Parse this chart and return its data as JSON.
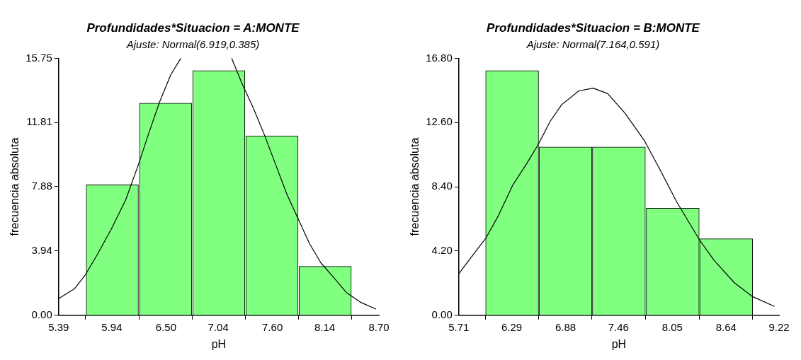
{
  "chart_data": [
    {
      "type": "histogram",
      "title": "Profundidades*Situacion = A:MONTE",
      "subtitle": "Ajuste: Normal(6.919,0.385)",
      "xlabel": "pH",
      "ylabel": "frecuencia absoluta",
      "bins": [
        5.67,
        6.22,
        6.77,
        7.32,
        7.87,
        8.42
      ],
      "values": [
        8,
        13,
        15,
        11,
        3
      ],
      "color": "#80ff80",
      "series": [
        {
          "type": "line",
          "color": "#000000",
          "x": [
            5.39,
            5.557,
            5.665,
            5.79,
            5.937,
            6.083,
            6.215,
            6.317,
            6.434,
            6.55,
            6.653,
            6.9,
            7.179,
            7.282,
            7.399,
            7.516,
            7.633,
            7.75,
            7.867,
            7.983,
            8.1,
            8.247,
            8.364,
            8.51,
            8.67
          ],
          "values": [
            1.02,
            1.64,
            2.47,
            3.72,
            5.31,
            7.07,
            9.24,
            11.07,
            13.08,
            14.75,
            15.75,
            null,
            15.75,
            14.25,
            12.74,
            11.07,
            9.24,
            7.4,
            5.9,
            4.39,
            3.22,
            2.22,
            1.39,
            0.8,
            0.38
          ]
        }
      ],
      "xlim": [
        5.39,
        8.7
      ],
      "xticks": [
        5.39,
        5.94,
        {
          "value": 6.5,
          "label": "6.50"
        },
        7.04,
        {
          "value": 7.6,
          "label": "7.60"
        },
        8.14,
        {
          "value": 8.7,
          "label": "8.70"
        }
      ],
      "ylim": [
        0,
        15.75
      ],
      "yticks": [
        {
          "value": 0,
          "label": "0.00"
        },
        3.94,
        7.88,
        11.81,
        15.75
      ],
      "grid": false,
      "legend": false
    },
    {
      "type": "histogram",
      "title": "Profundidades*Situacion = B:MONTE",
      "subtitle": "Ajuste: Normal(7.164,0.591)",
      "xlabel": "pH",
      "ylabel": "frecuencia absoluta",
      "bins": [
        6.0,
        6.59,
        7.17,
        7.76,
        8.35,
        8.93
      ],
      "values": [
        16,
        11,
        11,
        7,
        5
      ],
      "color": "#80ff80",
      "series": [
        {
          "type": "line",
          "color": "#000000",
          "x": [
            5.71,
            5.89,
            6.007,
            6.142,
            6.3,
            6.458,
            6.578,
            6.711,
            6.837,
            7.026,
            7.184,
            7.342,
            7.531,
            7.746,
            7.91,
            8.1,
            8.346,
            8.51,
            8.73,
            8.93,
            9.17
          ],
          "values": [
            2.71,
            4.13,
            5.04,
            6.49,
            8.49,
            9.95,
            11.13,
            12.67,
            13.76,
            14.67,
            14.85,
            14.49,
            13.22,
            11.4,
            9.58,
            7.4,
            4.95,
            3.58,
            2.13,
            1.22,
            0.58
          ]
        }
      ],
      "xlim": [
        5.71,
        9.22
      ],
      "xticks": [
        5.71,
        6.29,
        6.88,
        7.46,
        8.05,
        8.64,
        9.22
      ],
      "ylim": [
        0,
        16.8
      ],
      "yticks": [
        {
          "value": 0,
          "label": "0.00"
        },
        {
          "value": 4.2,
          "label": "4.20"
        },
        {
          "value": 8.4,
          "label": "8.40"
        },
        {
          "value": 12.6,
          "label": "12.60"
        },
        {
          "value": 16.8,
          "label": "16.80"
        }
      ],
      "grid": false,
      "legend": false
    }
  ]
}
